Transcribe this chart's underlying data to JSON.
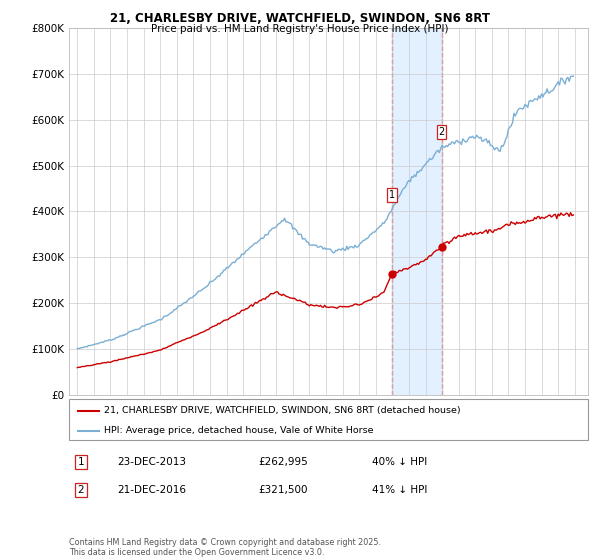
{
  "title1": "21, CHARLESBY DRIVE, WATCHFIELD, SWINDON, SN6 8RT",
  "title2": "Price paid vs. HM Land Registry's House Price Index (HPI)",
  "legend1": "21, CHARLESBY DRIVE, WATCHFIELD, SWINDON, SN6 8RT (detached house)",
  "legend2": "HPI: Average price, detached house, Vale of White Horse",
  "transaction1_label": "1",
  "transaction1_date": "23-DEC-2013",
  "transaction1_price": "£262,995",
  "transaction1_hpi": "40% ↓ HPI",
  "transaction2_label": "2",
  "transaction2_date": "21-DEC-2016",
  "transaction2_price": "£321,500",
  "transaction2_hpi": "41% ↓ HPI",
  "footer": "Contains HM Land Registry data © Crown copyright and database right 2025.\nThis data is licensed under the Open Government Licence v3.0.",
  "hpi_color": "#7bafd4",
  "price_color": "#cc0000",
  "marker1_x": 2013.97,
  "marker2_x": 2016.97,
  "ylim_min": 0,
  "ylim_max": 800000,
  "xlim_min": 1994.5,
  "xlim_max": 2025.8,
  "shading_color": "#ddeeff"
}
